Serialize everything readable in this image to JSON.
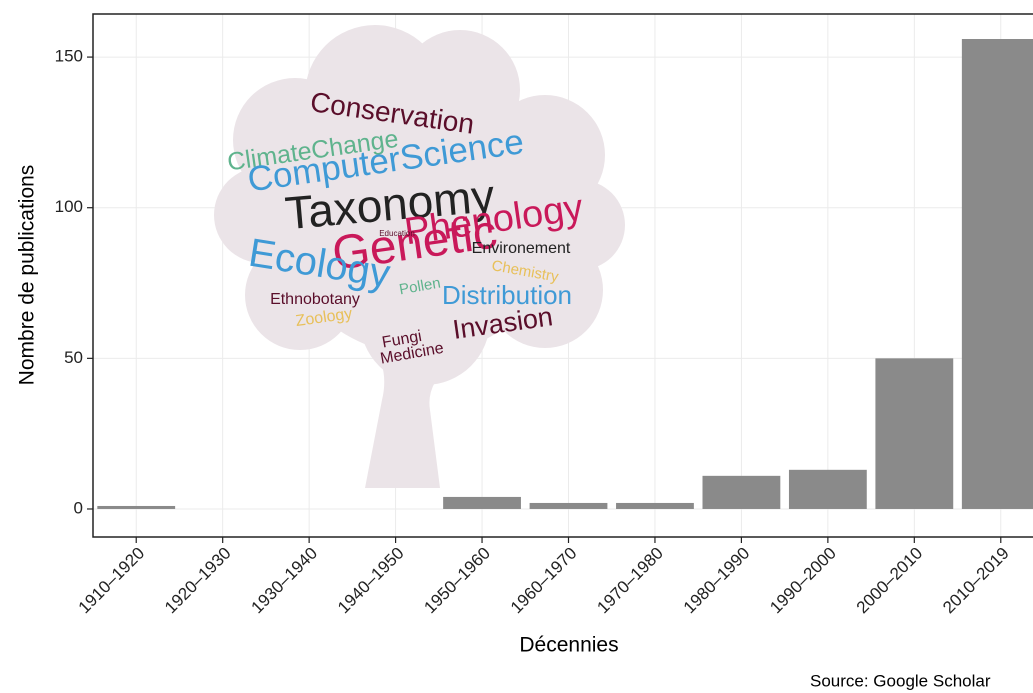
{
  "chart_data": {
    "type": "bar",
    "categories": [
      "1910–1920",
      "1920–1930",
      "1930–1940",
      "1940–1950",
      "1950–1960",
      "1960–1970",
      "1970–1980",
      "1980–1990",
      "1990–2000",
      "2000–2010",
      "2010–2019"
    ],
    "values": [
      1,
      0,
      0,
      0,
      4,
      2,
      2,
      11,
      13,
      50,
      156
    ],
    "color": "#8a8a8a",
    "ylim": [
      -9.3,
      164.3
    ],
    "yticks": [
      0,
      50,
      100,
      150
    ],
    "grid": true,
    "y_label": "Nombre de publications",
    "x_label": "Décennies",
    "caption": "Source: Google Scholar",
    "word_cloud": [
      {
        "text": "Conservation",
        "color": "#5a0e2a"
      },
      {
        "text": "ClimateChange",
        "color": "#5fb38d"
      },
      {
        "text": "ComputerScience",
        "color": "#3f9ad6"
      },
      {
        "text": "Taxonomy",
        "color": "#222222"
      },
      {
        "text": "Phenology",
        "color": "#c9195a"
      },
      {
        "text": "Genetic",
        "color": "#c9195a"
      },
      {
        "text": "Education",
        "color": "#5a0e2a"
      },
      {
        "text": "Environement",
        "color": "#222222"
      },
      {
        "text": "Ecology",
        "color": "#3f9ad6"
      },
      {
        "text": "Chemistry",
        "color": "#e8c05a"
      },
      {
        "text": "Pollen",
        "color": "#5fb38d"
      },
      {
        "text": "Distribution",
        "color": "#3f9ad6"
      },
      {
        "text": "Ethnobotany",
        "color": "#5a0e2a"
      },
      {
        "text": "Zoology",
        "color": "#e8c05a"
      },
      {
        "text": "Invasion",
        "color": "#5a0e2a"
      },
      {
        "text": "Fungi",
        "color": "#5a0e2a"
      },
      {
        "text": "Medicine",
        "color": "#5a0e2a"
      }
    ]
  }
}
